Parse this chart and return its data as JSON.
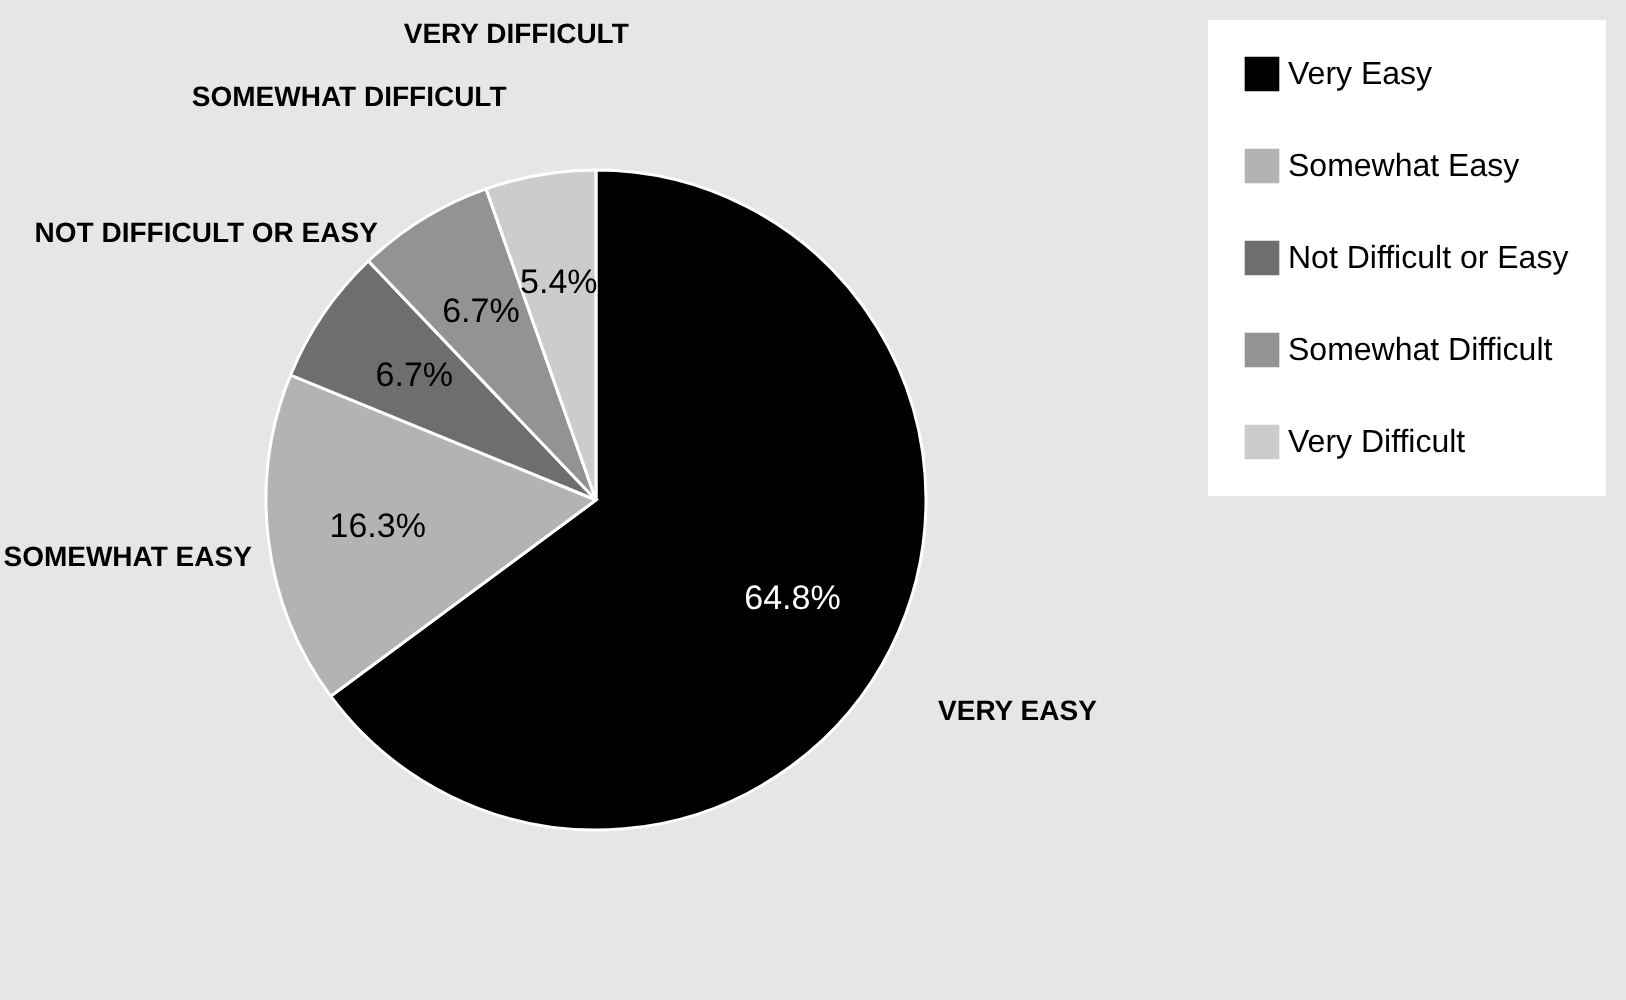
{
  "chart_data": {
    "type": "pie",
    "categories": [
      "Very Easy",
      "Somewhat Easy",
      "Not Difficult or Easy",
      "Somewhat Difficult",
      "Very Difficult"
    ],
    "values": [
      64.8,
      16.3,
      6.7,
      6.7,
      5.4
    ],
    "colors": [
      "#000000",
      "#b3b3b3",
      "#6e6e6e",
      "#939393",
      "#cccccc"
    ],
    "value_labels": [
      "64.8%",
      "16.3%",
      "6.7%",
      "6.7%",
      "5.4%"
    ],
    "annotations": [
      "VERY EASY",
      "SOMEWHAT EASY",
      "NOT DIFFICULT OR EASY",
      "SOMEWHAT DIFFICULT",
      "VERY DIFFICULT"
    ],
    "legend": "right"
  }
}
